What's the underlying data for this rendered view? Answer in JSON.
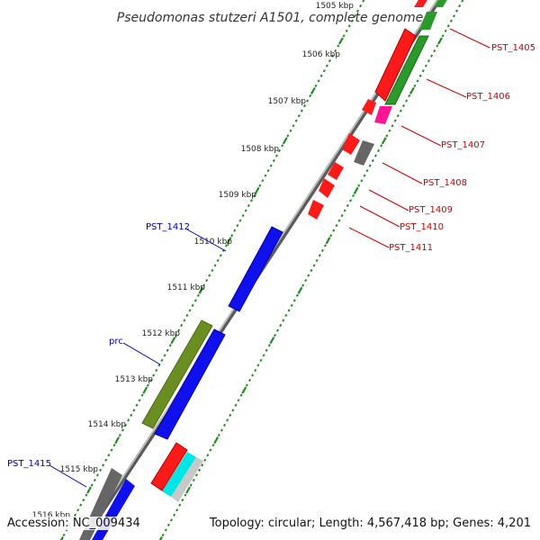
{
  "title": "Pseudomonas stutzeri A1501, complete genome",
  "ruler": {
    "ticks": [
      {
        "label": "1505 kbp"
      },
      {
        "label": "1506 kbp"
      },
      {
        "label": "1507 kbp"
      },
      {
        "label": "1508 kbp"
      },
      {
        "label": "1509 kbp"
      },
      {
        "label": "1510 kbp"
      },
      {
        "label": "1511 kbp"
      },
      {
        "label": "1512 kbp"
      },
      {
        "label": "1513 kbp"
      },
      {
        "label": "1514 kbp"
      },
      {
        "label": "1515 kbp"
      },
      {
        "label": "1516 kbp"
      }
    ]
  },
  "genes": {
    "reverse_labels": [
      "PST_1405",
      "PST_1406",
      "PST_1407",
      "PST_1408",
      "PST_1409",
      "PST_1410",
      "PST_1411"
    ],
    "forward_labels": [
      "PST_1412",
      "prc",
      "PST_1415"
    ]
  },
  "colors": {
    "reverse_label": "#cc0000",
    "forward_label": "#0000aa",
    "red_gene": "#ff1a1a",
    "green_gene": "#2a9a2a",
    "blue_gene": "#1010ee",
    "olive_gene": "#6b8e23",
    "gray_gene": "#666666",
    "magenta_gene": "#ff1493",
    "cyan_gene": "#00e5e5",
    "light_gray_gene": "#c8c8c8",
    "backbone": "#8a8a8a",
    "ruler_dots": "#228b22"
  },
  "footer": {
    "accession": "Accession: NC_009434",
    "summary": "Topology: circular; Length: 4,567,418 bp; Genes: 4,201"
  }
}
